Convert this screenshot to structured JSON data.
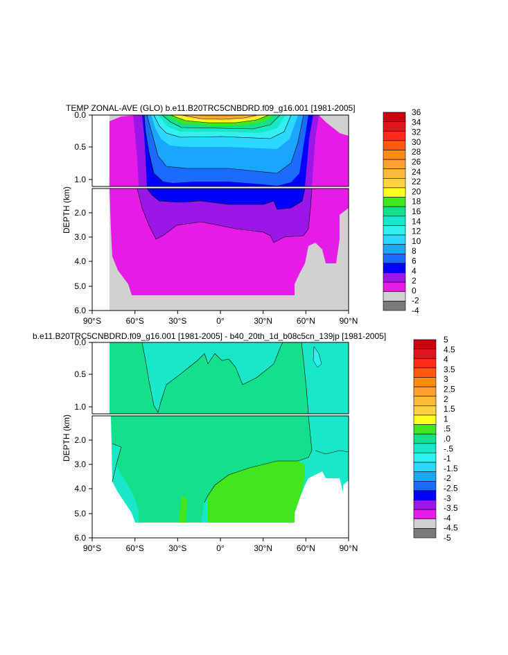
{
  "chart_data": [
    {
      "type": "heatmap",
      "title": "TEMP ZONAL-AVE (GLO) b.e11.B20TRC5CNBDRD.f09_g16.001 [1981-2005]",
      "ylabel": "DEPTH (km)",
      "x_ticks": [
        "90°S",
        "60°S",
        "30°S",
        "0°",
        "30°N",
        "60°N",
        "90°N"
      ],
      "xlim": [
        -90,
        90
      ],
      "y_ticks_upper": [
        "0.0",
        "0.5",
        "1.0"
      ],
      "y_ticks_lower": [
        "2.0",
        "3.0",
        "4.0",
        "5.0",
        "6.0"
      ],
      "ylim": [
        0,
        6
      ],
      "colorbar_levels": [
        "36",
        "34",
        "32",
        "30",
        "28",
        "26",
        "24",
        "22",
        "20",
        "18",
        "16",
        "14",
        "12",
        "10",
        "8",
        "6",
        "4",
        "2",
        "0",
        "-2",
        "-4"
      ],
      "colorbar_colors": [
        "#c8000f",
        "#e0141a",
        "#ff2a1a",
        "#ff5a10",
        "#ff8c12",
        "#ffa030",
        "#ffb83a",
        "#ffd23e",
        "#ffff1e",
        "#43e51d",
        "#12e08a",
        "#19e8c8",
        "#30f0f0",
        "#2cd8ff",
        "#1aa6ff",
        "#1c6bff",
        "#0000ff",
        "#9a17e8",
        "#e61be6",
        "#d1d1d1",
        "#7a7a7a"
      ],
      "land_color": "#d1d1d1"
    },
    {
      "type": "heatmap",
      "title": "b.e11.B20TRC5CNBDRD.f09_g16.001 [1981-2005] - b40_20th_1d_b08c5cn_139jp [1981-2005]",
      "ylabel": "DEPTH (km)",
      "x_ticks": [
        "90°S",
        "60°S",
        "30°S",
        "0°",
        "30°N",
        "60°N",
        "90°N"
      ],
      "xlim": [
        -90,
        90
      ],
      "y_ticks_upper": [
        "0.0",
        "0.5",
        "1.0"
      ],
      "y_ticks_lower": [
        "2.0",
        "3.0",
        "4.0",
        "5.0",
        "6.0"
      ],
      "ylim": [
        0,
        6
      ],
      "colorbar_levels": [
        "5",
        "4.5",
        "4",
        "3.5",
        "3",
        "2.5",
        "2",
        "1.5",
        "1",
        ".5",
        ".0",
        "-.5",
        "-1",
        "-1.5",
        "-2",
        "-2.5",
        "-3",
        "-3.5",
        "-4",
        "-4.5",
        "-5"
      ],
      "colorbar_colors": [
        "#c8000f",
        "#e0141a",
        "#ff2a1a",
        "#ff5a10",
        "#ff8c12",
        "#ffa030",
        "#ffb83a",
        "#ffd23e",
        "#ffff1e",
        "#43e51d",
        "#12e08a",
        "#19e8c8",
        "#30f0f0",
        "#2cd8ff",
        "#1aa6ff",
        "#1c6bff",
        "#0000ff",
        "#9a17e8",
        "#e61be6",
        "#d1d1d1",
        "#7a7a7a"
      ],
      "land_color": "#d1d1d1"
    }
  ]
}
